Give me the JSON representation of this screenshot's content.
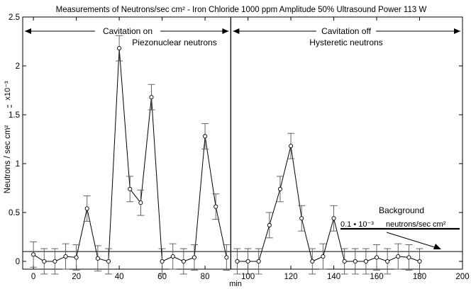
{
  "chart_data": {
    "type": "line",
    "title": "Measurements of Neutrons/sec cm²  - Iron Chloride 1000 ppm Amplitude 50% Ultrasound Power 113 W",
    "xlabel": "min",
    "ylabel": "Neutrons / sec cm²",
    "y_scale_label": "x10⁻³",
    "xlim": [
      -5,
      200
    ],
    "ylim": [
      -0.08,
      2.5
    ],
    "x_ticks": [
      0,
      20,
      40,
      60,
      80,
      100,
      120,
      140,
      160,
      180,
      200
    ],
    "y_ticks": [
      0,
      0.5,
      1,
      1.5,
      2,
      2.5
    ],
    "grid": false,
    "series": [
      {
        "x": [
          0,
          5,
          10,
          15,
          20,
          25,
          30,
          35,
          40,
          45,
          50,
          55,
          60,
          65,
          70,
          75,
          80,
          85,
          90
        ],
        "y": [
          0.07,
          0.0,
          0.0,
          0.05,
          0.04,
          0.54,
          0.03,
          0.0,
          2.18,
          0.74,
          0.6,
          1.68,
          0.0,
          0.05,
          0.0,
          0.04,
          1.28,
          0.56,
          0.04
        ],
        "err": [
          0.13,
          0.13,
          0.13,
          0.13,
          0.13,
          0.13,
          0.13,
          0.13,
          0.13,
          0.13,
          0.13,
          0.13,
          0.13,
          0.13,
          0.13,
          0.13,
          0.13,
          0.13,
          0.13
        ]
      },
      {
        "x": [
          95,
          100,
          105,
          110,
          115,
          120,
          125,
          130,
          135,
          140,
          145,
          150,
          155,
          160,
          165,
          170,
          175,
          180
        ],
        "y": [
          0.0,
          0.0,
          0.0,
          0.37,
          0.74,
          1.18,
          0.44,
          0.0,
          0.05,
          0.44,
          0.0,
          0.0,
          0.0,
          0.04,
          0.0,
          0.05,
          0.04,
          0.0
        ],
        "err": [
          0.13,
          0.13,
          0.13,
          0.13,
          0.13,
          0.13,
          0.13,
          0.13,
          0.13,
          0.13,
          0.13,
          0.13,
          0.13,
          0.13,
          0.13,
          0.13,
          0.13,
          0.13
        ]
      }
    ],
    "divider_x": 92,
    "background_level": 0.1,
    "annotations": {
      "cavitation_on": "Cavitation on",
      "piezonuclear": "Piezonuclear neutrons",
      "cavitation_off": "Cavitation off",
      "hysteretic": "Hysteretic neutrons",
      "background_title": "Background",
      "background_value": "0.1 • 10⁻³",
      "background_unit": "neutrons/sec cm²"
    }
  }
}
